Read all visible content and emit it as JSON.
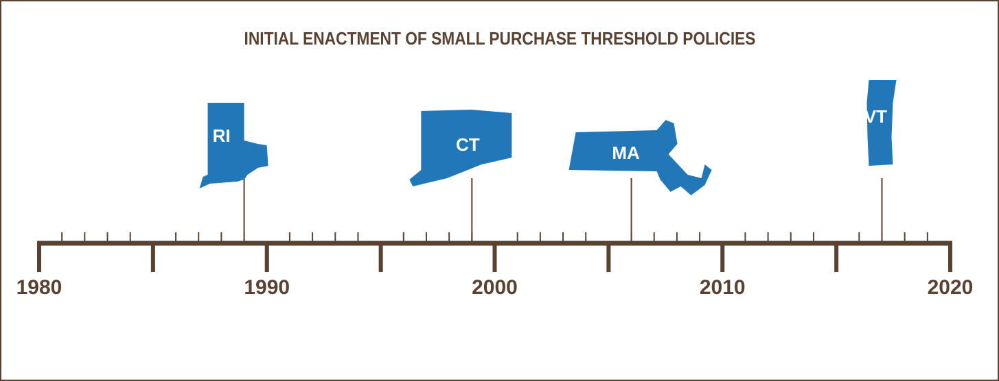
{
  "chart_data": {
    "type": "timeline",
    "title": "INITIAL ENACTMENT OF SMALL PURCHASE THRESHOLD POLICIES",
    "events": [
      {
        "label": "RI",
        "x": 1989
      },
      {
        "label": "CT",
        "x": 1999
      },
      {
        "label": "MA",
        "x": 2006
      },
      {
        "label": "VT",
        "x": 2017
      }
    ],
    "xlim": [
      1980,
      2020
    ],
    "xticks": [
      1980,
      1990,
      2000,
      2010,
      2020
    ],
    "mid_xticks": [
      1985,
      1995,
      2005,
      2015
    ],
    "minor_xticks": [
      1981,
      1982,
      1983,
      1984,
      1986,
      1987,
      1988,
      1989,
      1991,
      1992,
      1993,
      1994,
      1996,
      1997,
      1998,
      1999,
      2001,
      2002,
      2003,
      2004,
      2006,
      2007,
      2008,
      2009,
      2011,
      2012,
      2013,
      2014,
      2016,
      2017,
      2018,
      2019
    ],
    "color": "#2277b8",
    "axis_color": "#5a4232"
  }
}
